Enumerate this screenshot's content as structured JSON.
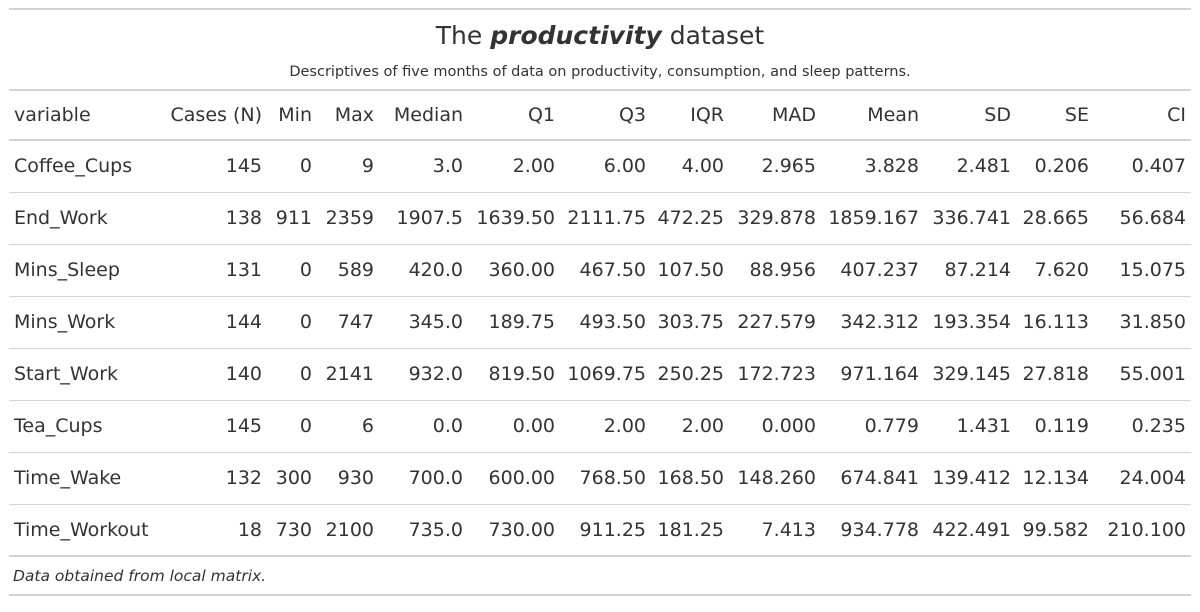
{
  "chart_data": {
    "type": "table",
    "title": {
      "prefix": "The ",
      "emphasis": "productivity",
      "suffix": " dataset"
    },
    "subtitle": "Descriptives of five months of data on productivity, consumption, and sleep patterns.",
    "columns": [
      "variable",
      "Cases (N)",
      "Min",
      "Max",
      "Median",
      "Q1",
      "Q3",
      "IQR",
      "MAD",
      "Mean",
      "SD",
      "SE",
      "CI"
    ],
    "rows": [
      [
        "Coffee_Cups",
        "145",
        "0",
        "9",
        "3.0",
        "2.00",
        "6.00",
        "4.00",
        "2.965",
        "3.828",
        "2.481",
        "0.206",
        "0.407"
      ],
      [
        "End_Work",
        "138",
        "911",
        "2359",
        "1907.5",
        "1639.50",
        "2111.75",
        "472.25",
        "329.878",
        "1859.167",
        "336.741",
        "28.665",
        "56.684"
      ],
      [
        "Mins_Sleep",
        "131",
        "0",
        "589",
        "420.0",
        "360.00",
        "467.50",
        "107.50",
        "88.956",
        "407.237",
        "87.214",
        "7.620",
        "15.075"
      ],
      [
        "Mins_Work",
        "144",
        "0",
        "747",
        "345.0",
        "189.75",
        "493.50",
        "303.75",
        "227.579",
        "342.312",
        "193.354",
        "16.113",
        "31.850"
      ],
      [
        "Start_Work",
        "140",
        "0",
        "2141",
        "932.0",
        "819.50",
        "1069.75",
        "250.25",
        "172.723",
        "971.164",
        "329.145",
        "27.818",
        "55.001"
      ],
      [
        "Tea_Cups",
        "145",
        "0",
        "6",
        "0.0",
        "0.00",
        "2.00",
        "2.00",
        "0.000",
        "0.779",
        "1.431",
        "0.119",
        "0.235"
      ],
      [
        "Time_Wake",
        "132",
        "300",
        "930",
        "700.0",
        "600.00",
        "768.50",
        "168.50",
        "148.260",
        "674.841",
        "139.412",
        "12.134",
        "24.004"
      ],
      [
        "Time_Workout",
        "18",
        "730",
        "2100",
        "735.0",
        "730.00",
        "911.25",
        "181.25",
        "7.413",
        "934.778",
        "422.491",
        "99.582",
        "210.100"
      ]
    ],
    "source_note": "Data obtained from local matrix."
  }
}
